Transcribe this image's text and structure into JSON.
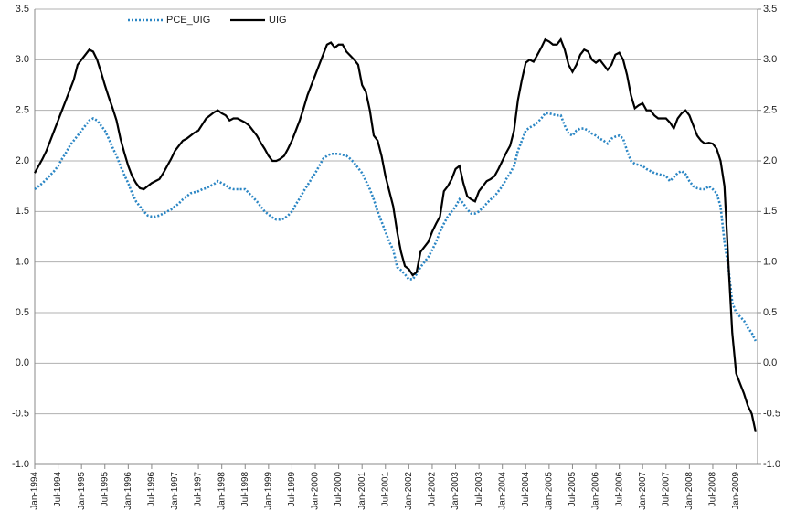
{
  "chart_data": {
    "type": "line",
    "categories": [
      "Jan-1994",
      null,
      null,
      null,
      null,
      null,
      "Jul-1994",
      null,
      null,
      null,
      null,
      null,
      "Jan-1995",
      null,
      null,
      null,
      null,
      null,
      "Jul-1995",
      null,
      null,
      null,
      null,
      null,
      "Jan-1996",
      null,
      null,
      null,
      null,
      null,
      "Jul-1996",
      null,
      null,
      null,
      null,
      null,
      "Jan-1997",
      null,
      null,
      null,
      null,
      null,
      "Jul-1997",
      null,
      null,
      null,
      null,
      null,
      "Jan-1998",
      null,
      null,
      null,
      null,
      null,
      "Jul-1998",
      null,
      null,
      null,
      null,
      null,
      "Jan-1999",
      null,
      null,
      null,
      null,
      null,
      "Jul-1999",
      null,
      null,
      null,
      null,
      null,
      "Jan-2000",
      null,
      null,
      null,
      null,
      null,
      "Jul-2000",
      null,
      null,
      null,
      null,
      null,
      "Jan-2001",
      null,
      null,
      null,
      null,
      null,
      "Jul-2001",
      null,
      null,
      null,
      null,
      null,
      "Jan-2002",
      null,
      null,
      null,
      null,
      null,
      "Jul-2002",
      null,
      null,
      null,
      null,
      null,
      "Jan-2003",
      null,
      null,
      null,
      null,
      null,
      "Jul-2003",
      null,
      null,
      null,
      null,
      null,
      "Jan-2004",
      null,
      null,
      null,
      null,
      null,
      "Jul-2004",
      null,
      null,
      null,
      null,
      null,
      "Jan-2005",
      null,
      null,
      null,
      null,
      null,
      "Jul-2005",
      null,
      null,
      null,
      null,
      null,
      "Jan-2006",
      null,
      null,
      null,
      null,
      null,
      "Jul-2006",
      null,
      null,
      null,
      null,
      null,
      "Jan-2007",
      null,
      null,
      null,
      null,
      null,
      "Jul-2007",
      null,
      null,
      null,
      null,
      null,
      "Jan-2008",
      null,
      null,
      null,
      null,
      null,
      "Jul-2008",
      null,
      null,
      null,
      null,
      null,
      "Jan-2009",
      null,
      null,
      null,
      null,
      null
    ],
    "series": [
      {
        "name": "PCE_UIG",
        "color": "#2b86c4",
        "line_style": "dotted",
        "values": [
          1.72,
          1.75,
          1.78,
          1.82,
          1.86,
          1.9,
          1.95,
          2.02,
          2.08,
          2.15,
          2.2,
          2.25,
          2.3,
          2.35,
          2.4,
          2.42,
          2.4,
          2.35,
          2.3,
          2.22,
          2.13,
          2.05,
          1.95,
          1.86,
          1.78,
          1.68,
          1.6,
          1.55,
          1.5,
          1.46,
          1.45,
          1.45,
          1.46,
          1.48,
          1.5,
          1.52,
          1.55,
          1.58,
          1.62,
          1.65,
          1.68,
          1.69,
          1.7,
          1.72,
          1.73,
          1.75,
          1.77,
          1.8,
          1.78,
          1.76,
          1.73,
          1.72,
          1.72,
          1.72,
          1.72,
          1.68,
          1.64,
          1.6,
          1.55,
          1.5,
          1.47,
          1.44,
          1.42,
          1.42,
          1.43,
          1.46,
          1.5,
          1.57,
          1.63,
          1.7,
          1.76,
          1.82,
          1.88,
          1.95,
          2.02,
          2.05,
          2.07,
          2.07,
          2.07,
          2.06,
          2.05,
          2.02,
          1.98,
          1.93,
          1.88,
          1.8,
          1.72,
          1.62,
          1.5,
          1.4,
          1.3,
          1.2,
          1.12,
          0.95,
          0.92,
          0.88,
          0.83,
          0.83,
          0.88,
          0.95,
          1.0,
          1.05,
          1.12,
          1.2,
          1.3,
          1.38,
          1.45,
          1.5,
          1.55,
          1.62,
          1.58,
          1.52,
          1.48,
          1.48,
          1.5,
          1.54,
          1.58,
          1.62,
          1.65,
          1.7,
          1.75,
          1.82,
          1.88,
          1.95,
          2.1,
          2.2,
          2.3,
          2.33,
          2.35,
          2.38,
          2.42,
          2.47,
          2.47,
          2.46,
          2.45,
          2.45,
          2.35,
          2.27,
          2.25,
          2.3,
          2.32,
          2.32,
          2.3,
          2.27,
          2.25,
          2.22,
          2.2,
          2.17,
          2.22,
          2.24,
          2.25,
          2.22,
          2.1,
          2.0,
          1.97,
          1.96,
          1.95,
          1.92,
          1.9,
          1.88,
          1.87,
          1.86,
          1.85,
          1.8,
          1.84,
          1.88,
          1.9,
          1.87,
          1.8,
          1.75,
          1.73,
          1.72,
          1.72,
          1.75,
          1.72,
          1.68,
          1.55,
          1.2,
          0.95,
          0.6,
          0.5,
          0.46,
          0.42,
          0.35,
          0.3,
          0.22
        ]
      },
      {
        "name": "UIG",
        "color": "#000000",
        "line_style": "solid",
        "values": [
          1.88,
          1.95,
          2.02,
          2.1,
          2.2,
          2.3,
          2.4,
          2.5,
          2.6,
          2.7,
          2.8,
          2.95,
          3.0,
          3.05,
          3.1,
          3.08,
          3.0,
          2.88,
          2.75,
          2.63,
          2.52,
          2.4,
          2.22,
          2.08,
          1.95,
          1.85,
          1.78,
          1.73,
          1.72,
          1.75,
          1.78,
          1.8,
          1.82,
          1.88,
          1.95,
          2.02,
          2.1,
          2.15,
          2.2,
          2.22,
          2.25,
          2.28,
          2.3,
          2.36,
          2.42,
          2.45,
          2.48,
          2.5,
          2.47,
          2.45,
          2.4,
          2.42,
          2.42,
          2.4,
          2.38,
          2.35,
          2.3,
          2.25,
          2.18,
          2.12,
          2.05,
          2.0,
          2.0,
          2.02,
          2.05,
          2.12,
          2.2,
          2.3,
          2.4,
          2.52,
          2.65,
          2.75,
          2.85,
          2.95,
          3.05,
          3.15,
          3.17,
          3.12,
          3.15,
          3.15,
          3.08,
          3.04,
          3.0,
          2.95,
          2.75,
          2.68,
          2.5,
          2.25,
          2.2,
          2.05,
          1.85,
          1.7,
          1.55,
          1.3,
          1.1,
          0.96,
          0.93,
          0.87,
          0.9,
          1.1,
          1.15,
          1.2,
          1.3,
          1.38,
          1.45,
          1.7,
          1.75,
          1.82,
          1.92,
          1.95,
          1.78,
          1.65,
          1.62,
          1.6,
          1.7,
          1.75,
          1.8,
          1.82,
          1.85,
          1.92,
          2.0,
          2.08,
          2.15,
          2.3,
          2.6,
          2.8,
          2.97,
          3.0,
          2.98,
          3.05,
          3.12,
          3.2,
          3.18,
          3.15,
          3.15,
          3.2,
          3.1,
          2.95,
          2.88,
          2.95,
          3.05,
          3.1,
          3.08,
          3.0,
          2.97,
          3.0,
          2.95,
          2.9,
          2.95,
          3.05,
          3.07,
          3.0,
          2.85,
          2.65,
          2.52,
          2.55,
          2.57,
          2.5,
          2.5,
          2.45,
          2.42,
          2.42,
          2.42,
          2.38,
          2.32,
          2.42,
          2.47,
          2.5,
          2.45,
          2.35,
          2.25,
          2.2,
          2.17,
          2.18,
          2.17,
          2.12,
          2.0,
          1.75,
          1.0,
          0.3,
          -0.1,
          -0.2,
          -0.3,
          -0.42,
          -0.5,
          -0.68
        ]
      }
    ],
    "ylim": [
      -1,
      3.5
    ],
    "yticks": [
      -0.5,
      {
        "value": -1,
        "label": "-1.0"
      },
      {
        "value": 0,
        "label": "0.0"
      },
      0.5,
      {
        "value": 1,
        "label": "1.0"
      },
      1.5,
      {
        "value": 2,
        "label": "2.0"
      },
      2.5,
      {
        "value": 3,
        "label": "3.0"
      },
      3.5
    ],
    "y2lim": [
      -1,
      3.5
    ],
    "y2ticks": [
      -0.5,
      {
        "value": -1,
        "label": "-1.0"
      },
      {
        "value": 0,
        "label": "0.0"
      },
      0.5,
      {
        "value": 1,
        "label": "1.0"
      },
      1.5,
      {
        "value": 2,
        "label": "2.0"
      },
      2.5,
      {
        "value": 3,
        "label": "3.0"
      },
      3.5
    ],
    "grid": true,
    "legend": "top-left"
  }
}
